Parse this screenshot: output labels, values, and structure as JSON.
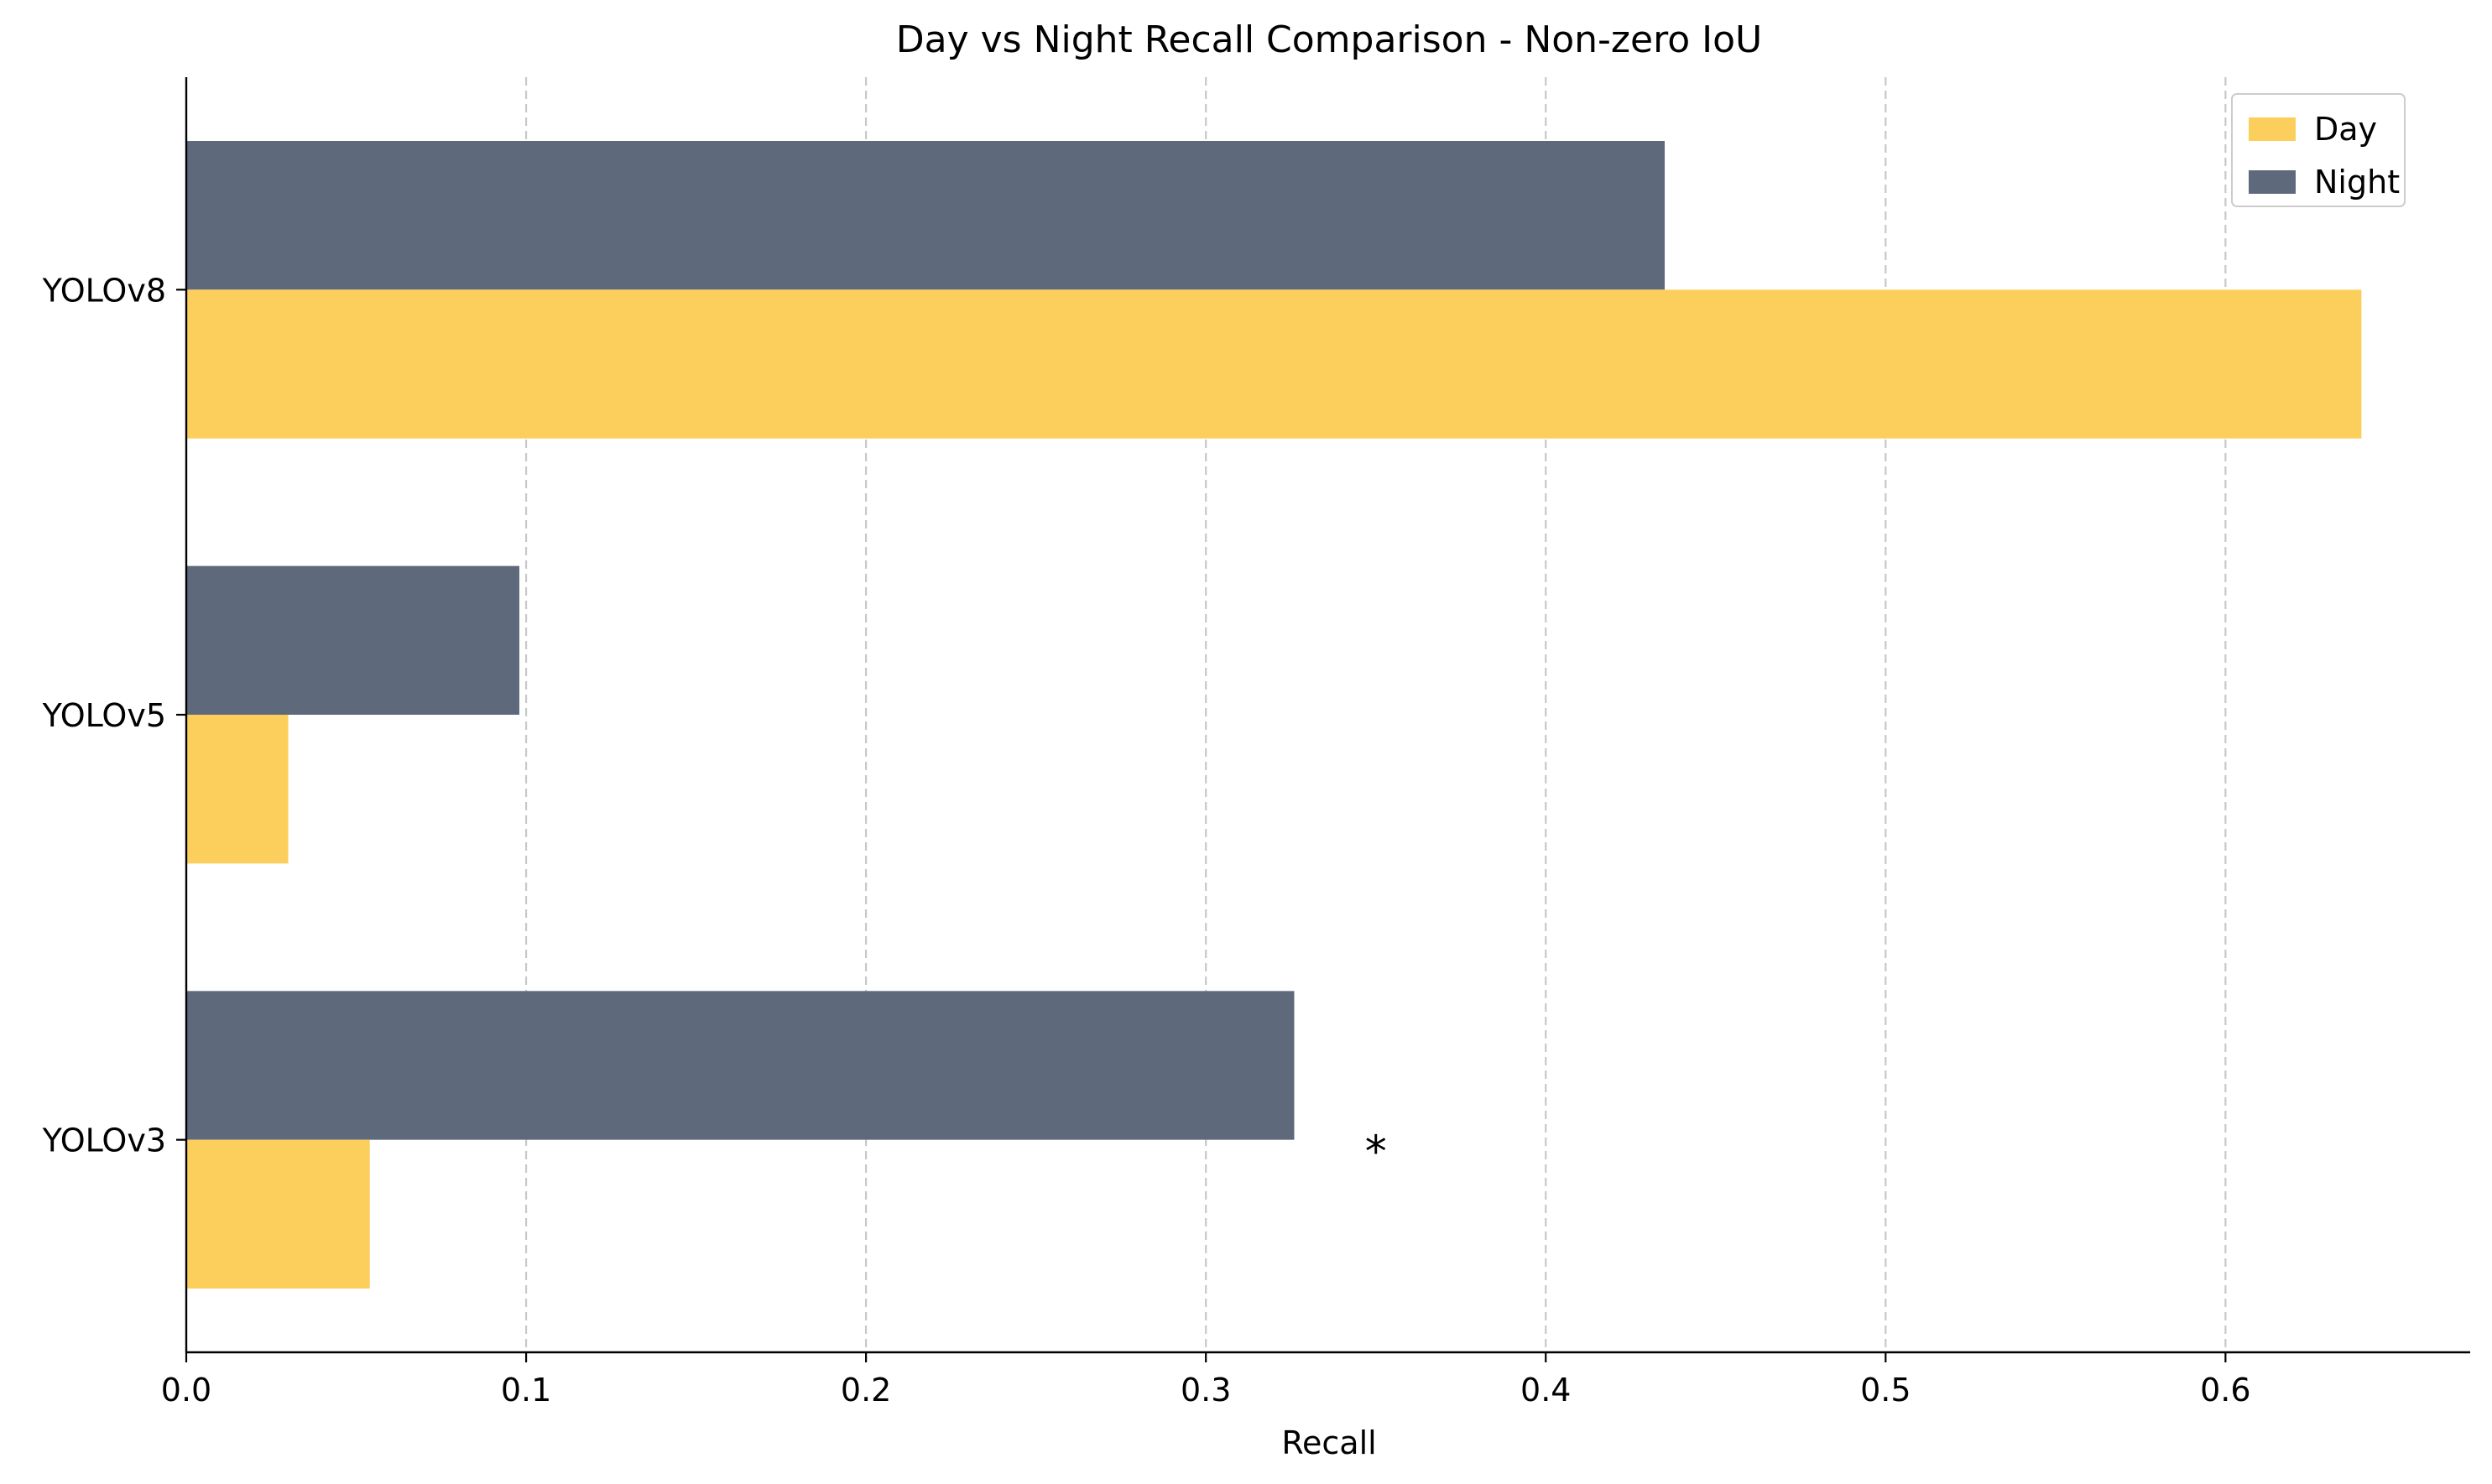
{
  "chart_data": {
    "type": "bar",
    "orientation": "horizontal",
    "title": "Day vs Night Recall Comparison - Non-zero IoU",
    "xlabel": "Recall",
    "ylabel": "",
    "categories": [
      "YOLOv8",
      "YOLOv5",
      "YOLOv3"
    ],
    "series": [
      {
        "name": "Day",
        "values": [
          0.64,
          0.03,
          0.054
        ],
        "color": "#fcce5c"
      },
      {
        "name": "Night",
        "values": [
          0.435,
          0.098,
          0.326
        ],
        "color": "#5e6a7b"
      }
    ],
    "xlim": [
      0,
      0.672
    ],
    "xticks": [
      0,
      0.1,
      0.2,
      0.3,
      0.4,
      0.5,
      0.6
    ],
    "xtick_labels": [
      "0.0",
      "0.1",
      "0.2",
      "0.3",
      "0.4",
      "0.5",
      "0.6"
    ],
    "grid": {
      "x": true,
      "y": false,
      "style": "dashed",
      "color": "#c8c8c8"
    },
    "legend": {
      "position": "top-right",
      "entries": [
        "Day",
        "Night"
      ]
    },
    "annotations": [
      {
        "text": "*",
        "category": "YOLOv3",
        "x": 0.35
      }
    ]
  }
}
